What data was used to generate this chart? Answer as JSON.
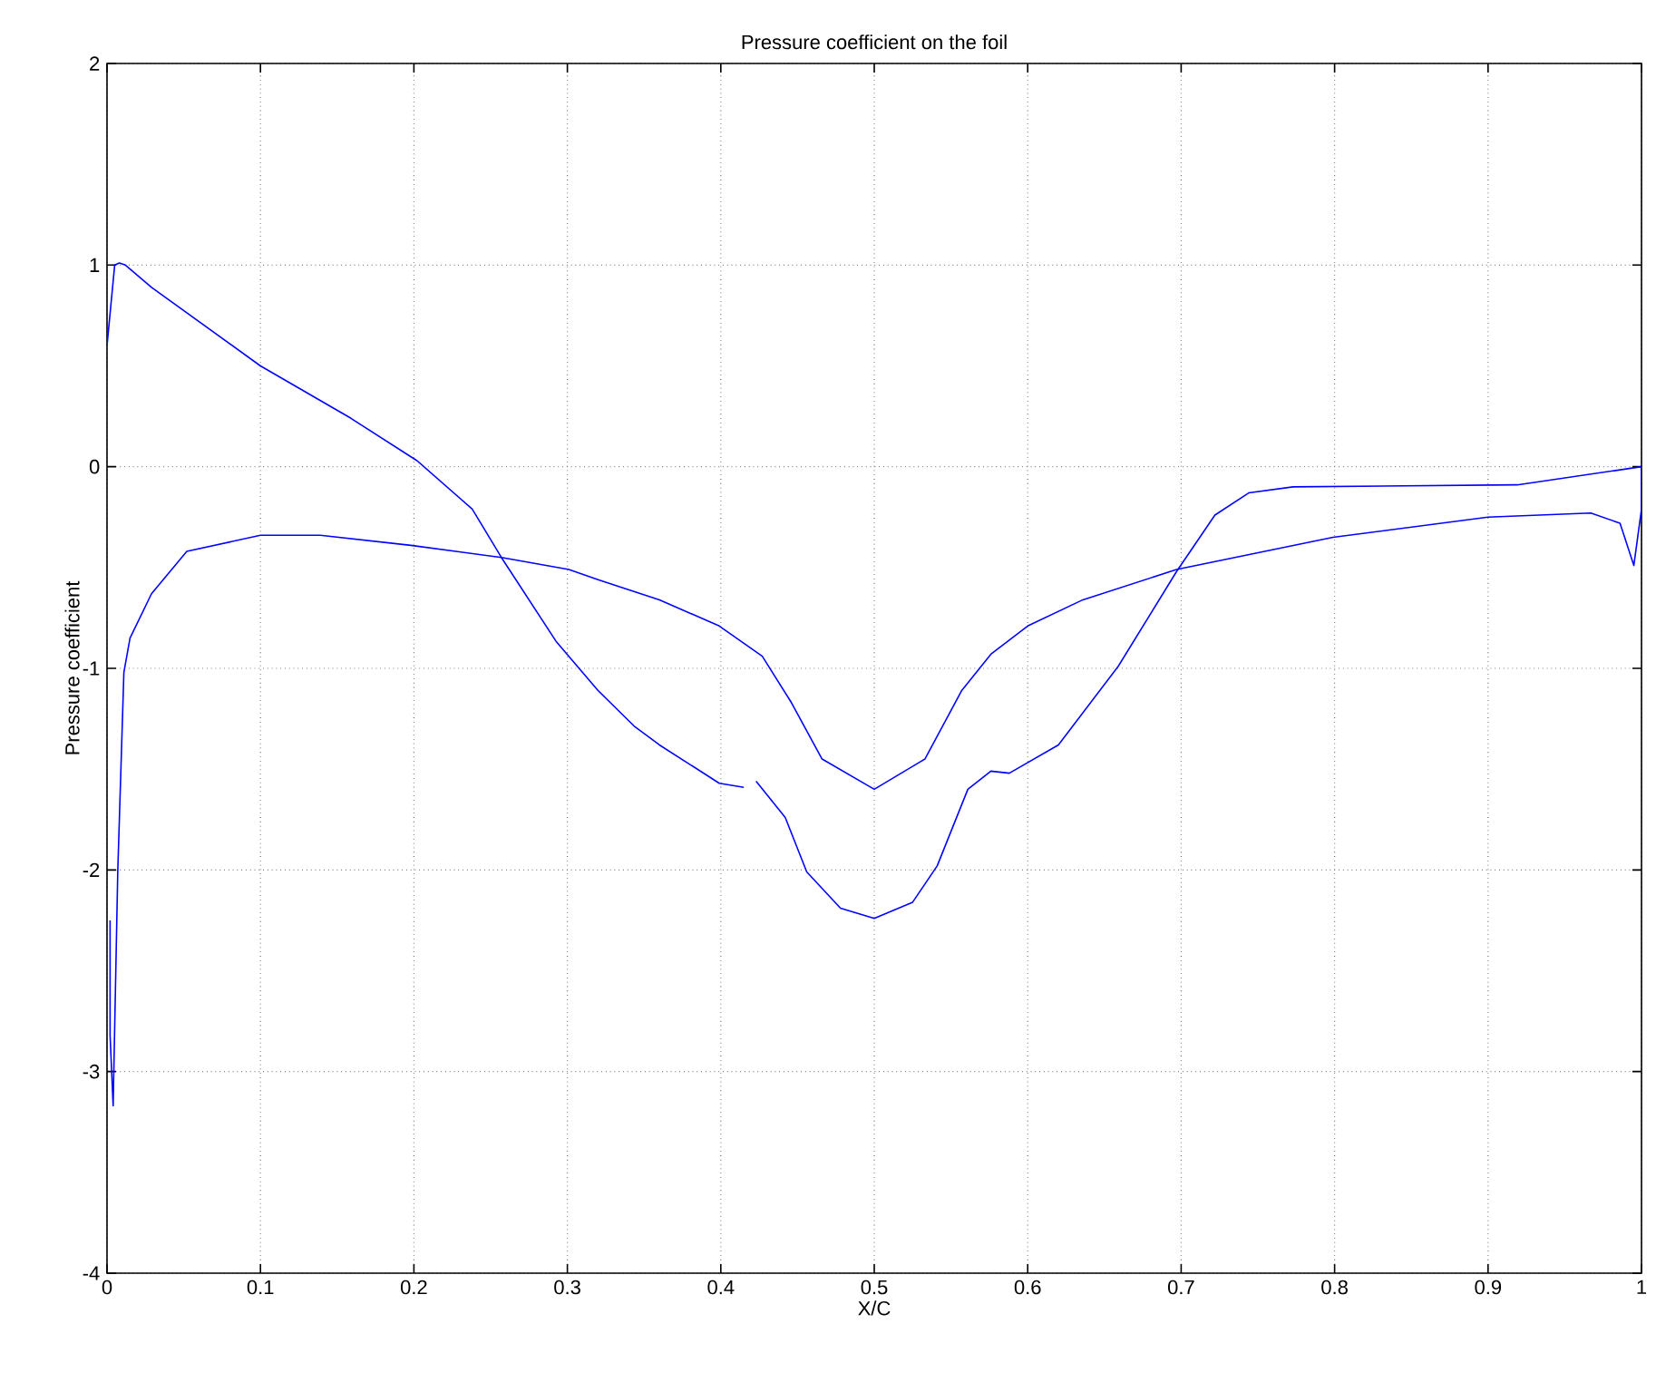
{
  "chart_data": {
    "type": "line",
    "title": "Pressure coefficient on the foil",
    "xlabel": "X/C",
    "ylabel": "Pressure coefficient",
    "xlim": [
      0,
      1
    ],
    "ylim": [
      -4,
      2
    ],
    "xticks": [
      0,
      0.1,
      0.2,
      0.3,
      0.4,
      0.5,
      0.6,
      0.7,
      0.8,
      0.9,
      1
    ],
    "yticks": [
      -4,
      -3,
      -2,
      -1,
      0,
      1,
      2
    ],
    "grid": true,
    "marker": "none",
    "line_style": "solid",
    "series": [
      {
        "color": "#0000ff",
        "x": [
          0,
          0.005,
          0.008,
          0.012,
          0.029,
          0.1,
          0.159,
          0.202,
          0.238,
          0.257,
          0.293,
          0.32,
          0.344,
          0.36,
          0.399,
          0.415,
          0.419,
          0.423,
          0.442,
          0.456,
          0.478,
          0.5,
          0.525,
          0.541,
          0.561,
          0.576,
          0.588,
          0.62,
          0.659,
          0.697,
          0.722,
          0.744,
          0.773,
          0.919,
          1.0
        ],
        "values": [
          0.6,
          1.0,
          1.01,
          1.0,
          0.89,
          0.5,
          0.24,
          0.03,
          -0.21,
          -0.45,
          -0.87,
          -1.11,
          -1.29,
          -1.38,
          -1.57,
          -1.59,
          null,
          -1.56,
          -1.74,
          -2.01,
          -2.19,
          -2.24,
          -2.16,
          -1.98,
          -1.6,
          -1.51,
          -1.52,
          -1.38,
          -0.99,
          -0.52,
          -0.24,
          -0.13,
          -0.1,
          -0.09,
          0
        ]
      },
      {
        "color": "#0000ff",
        "x": [
          0.002,
          0.002,
          0.004,
          0.007,
          0.011,
          0.015,
          0.029,
          0.052,
          0.1,
          0.139,
          0.198,
          0.257,
          0.301,
          0.32,
          0.36,
          0.399,
          0.427,
          0.446,
          0.466,
          0.5,
          0.533,
          0.557,
          0.576,
          0.6,
          0.636,
          0.697,
          0.799,
          0.9,
          0.967,
          0.986,
          0.995,
          1.0,
          1.0
        ],
        "values": [
          -2.25,
          -2.82,
          -3.17,
          -2.01,
          -1.02,
          -0.85,
          -0.63,
          -0.42,
          -0.34,
          -0.34,
          -0.39,
          -0.45,
          -0.51,
          -0.56,
          -0.66,
          -0.79,
          -0.94,
          -1.17,
          -1.45,
          -1.6,
          -1.45,
          -1.11,
          -0.93,
          -0.79,
          -0.66,
          -0.51,
          -0.35,
          -0.25,
          -0.23,
          -0.28,
          -0.49,
          -0.21,
          0
        ]
      }
    ]
  }
}
